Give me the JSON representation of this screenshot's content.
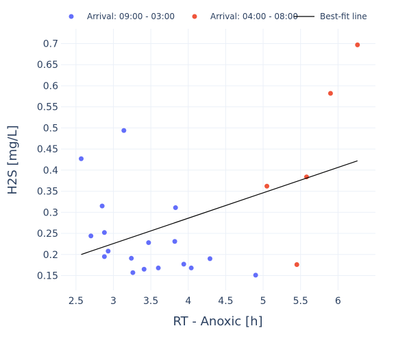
{
  "chart_data": {
    "type": "scatter",
    "xlabel": "RT - Anoxic [h]",
    "ylabel": "H2S [mg/L]",
    "xlim": [
      2.3,
      6.5
    ],
    "ylim": [
      0.115,
      0.735
    ],
    "x_ticks": [
      2.5,
      3,
      3.5,
      4,
      4.5,
      5,
      5.5,
      6
    ],
    "x_tick_labels": [
      "2.5",
      "3",
      "3.5",
      "4",
      "4.5",
      "5",
      "5.5",
      "6"
    ],
    "y_ticks": [
      0.15,
      0.2,
      0.25,
      0.3,
      0.35,
      0.4,
      0.45,
      0.5,
      0.55,
      0.6,
      0.65,
      0.7
    ],
    "y_tick_labels": [
      "0.15",
      "0.2",
      "0.25",
      "0.3",
      "0.35",
      "0.4",
      "0.45",
      "0.5",
      "0.55",
      "0.6",
      "0.65",
      "0.7"
    ],
    "grid": true,
    "legend_position": "top",
    "series": [
      {
        "name": "Arrival: 09:00 - 03:00",
        "mode": "markers",
        "color": "#636efa",
        "points": [
          {
            "x": 2.57,
            "y": 0.427
          },
          {
            "x": 2.7,
            "y": 0.244
          },
          {
            "x": 2.85,
            "y": 0.315
          },
          {
            "x": 2.88,
            "y": 0.252
          },
          {
            "x": 2.88,
            "y": 0.195
          },
          {
            "x": 2.93,
            "y": 0.208
          },
          {
            "x": 3.14,
            "y": 0.494
          },
          {
            "x": 3.24,
            "y": 0.191
          },
          {
            "x": 3.26,
            "y": 0.157
          },
          {
            "x": 3.41,
            "y": 0.165
          },
          {
            "x": 3.47,
            "y": 0.228
          },
          {
            "x": 3.6,
            "y": 0.168
          },
          {
            "x": 3.82,
            "y": 0.231
          },
          {
            "x": 3.83,
            "y": 0.311
          },
          {
            "x": 3.94,
            "y": 0.177
          },
          {
            "x": 4.04,
            "y": 0.168
          },
          {
            "x": 4.29,
            "y": 0.19
          },
          {
            "x": 4.9,
            "y": 0.151
          }
        ]
      },
      {
        "name": "Arrival: 04:00 - 08:00",
        "mode": "markers",
        "color": "#ef553b",
        "points": [
          {
            "x": 5.05,
            "y": 0.362
          },
          {
            "x": 5.45,
            "y": 0.176
          },
          {
            "x": 5.58,
            "y": 0.384
          },
          {
            "x": 5.9,
            "y": 0.582
          },
          {
            "x": 6.26,
            "y": 0.697
          }
        ]
      },
      {
        "name": "Best-fit line",
        "mode": "line",
        "color": "#000000",
        "points": [
          {
            "x": 2.57,
            "y": 0.2
          },
          {
            "x": 6.26,
            "y": 0.422
          }
        ]
      }
    ]
  }
}
